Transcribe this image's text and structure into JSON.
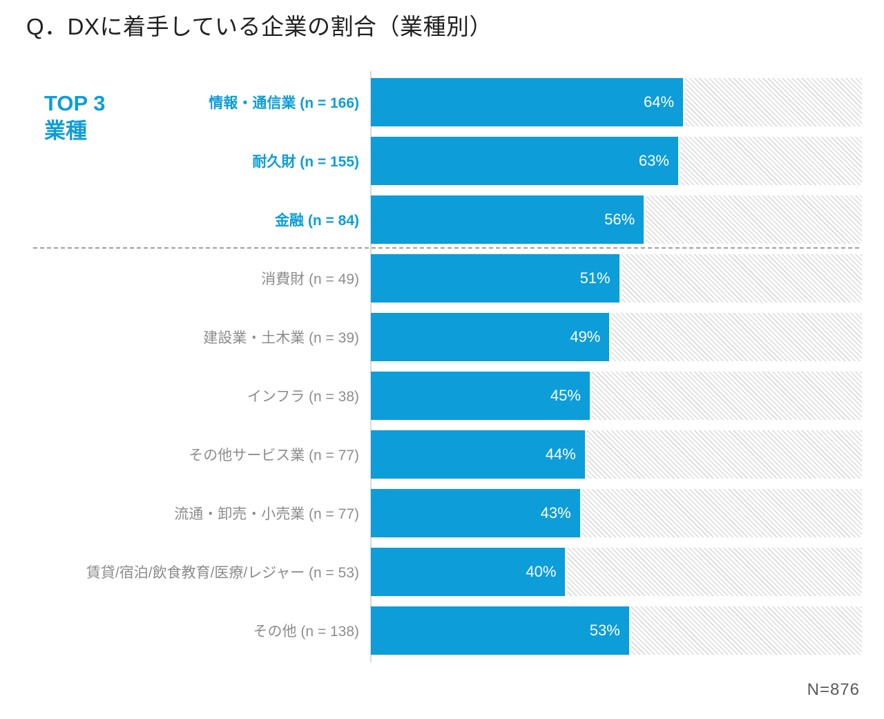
{
  "title": "Q．DXに着手している企業の割合（業種別）",
  "top3": {
    "line1": "TOP 3",
    "line2": "業種"
  },
  "footnote": "N=876",
  "colors": {
    "accent": "#0d9dd9",
    "bar_fill": "#0d9dd9",
    "value_label": "#ffffff",
    "gray_label": "#8c8c8c",
    "title": "#212121",
    "footnote": "#595959",
    "hatch_line": "#d9d9d9"
  },
  "chart_data": {
    "type": "bar",
    "orientation": "horizontal",
    "title": "Q．DXに着手している企業の割合（業種別）",
    "xlabel": "",
    "ylabel": "",
    "xlim": [
      0,
      100
    ],
    "grid": false,
    "legend": false,
    "background_track": "hatched diagonal stripes up to 100%",
    "total_n": 876,
    "categories": [
      "情報・通信業 (n = 166)",
      "耐久財 (n = 155)",
      "金融 (n = 84)",
      "消費財 (n = 49)",
      "建設業・土木業 (n = 39)",
      "インフラ (n = 38)",
      "その他サービス業 (n = 77)",
      "流通・卸売・小売業 (n = 77)",
      "賃貸/宿泊/飲食教育/医療/レジャー (n = 53)",
      "その他 (n = 138)"
    ],
    "values": [
      64,
      63,
      56,
      51,
      49,
      45,
      44,
      43,
      40,
      53
    ],
    "n_values": [
      166,
      155,
      84,
      49,
      39,
      38,
      77,
      77,
      53,
      138
    ],
    "rows": [
      {
        "label": "情報・通信業 (n = 166)",
        "value": 64,
        "value_label": "64%",
        "top3": true
      },
      {
        "label": "耐久財 (n = 155)",
        "value": 63,
        "value_label": "63%",
        "top3": true
      },
      {
        "label": "金融 (n = 84)",
        "value": 56,
        "value_label": "56%",
        "top3": true
      },
      {
        "label": "消費財 (n = 49)",
        "value": 51,
        "value_label": "51%",
        "top3": false
      },
      {
        "label": "建設業・土木業 (n = 39)",
        "value": 49,
        "value_label": "49%",
        "top3": false
      },
      {
        "label": "インフラ (n = 38)",
        "value": 45,
        "value_label": "45%",
        "top3": false
      },
      {
        "label": "その他サービス業 (n = 77)",
        "value": 44,
        "value_label": "44%",
        "top3": false
      },
      {
        "label": "流通・卸売・小売業 (n = 77)",
        "value": 43,
        "value_label": "43%",
        "top3": false
      },
      {
        "label": "賃貸/宿泊/飲食教育/医療/レジャー (n = 53)",
        "value": 40,
        "value_label": "40%",
        "top3": false
      },
      {
        "label": "その他 (n = 138)",
        "value": 53,
        "value_label": "53%",
        "top3": false
      }
    ]
  }
}
